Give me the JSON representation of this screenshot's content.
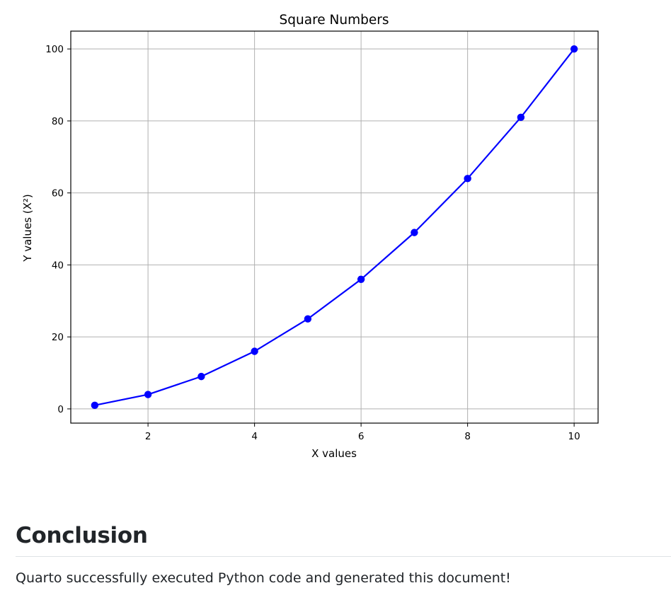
{
  "chart_data": {
    "type": "line",
    "title": "Square Numbers",
    "xlabel": "X values",
    "ylabel": "Y values (X²)",
    "x": [
      1,
      2,
      3,
      4,
      5,
      6,
      7,
      8,
      9,
      10
    ],
    "series": [
      {
        "values": [
          1,
          4,
          9,
          16,
          25,
          36,
          49,
          64,
          81,
          100
        ]
      }
    ],
    "xlim": [
      0.55,
      10.45
    ],
    "ylim": [
      -3.95,
      104.95
    ],
    "xticks": [
      2,
      4,
      6,
      8,
      10
    ],
    "yticks": [
      0,
      20,
      40,
      60,
      80,
      100
    ],
    "grid": true,
    "markers": "circle",
    "legend": "none",
    "colors": {
      "line": "#0000ff",
      "marker": "#0000ff",
      "grid": "#b0b0b0",
      "axes": "#000000"
    }
  },
  "document": {
    "heading": "Conclusion",
    "paragraph": "Quarto successfully executed Python code and generated this document!"
  }
}
